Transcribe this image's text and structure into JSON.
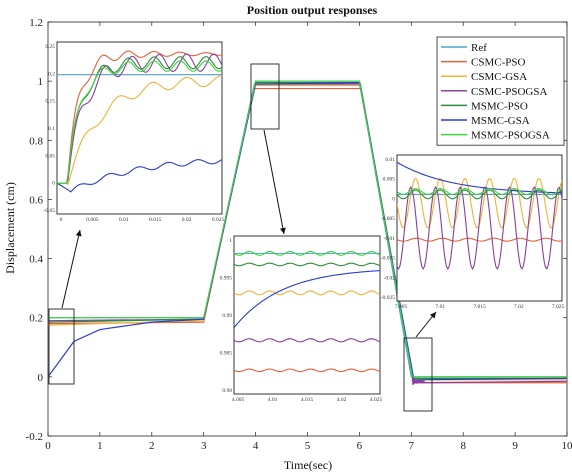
{
  "chart_data": {
    "type": "line",
    "title": "Position output responses",
    "xlabel": "Time(sec)",
    "ylabel": "Displacement (cm)",
    "xlim": [
      0,
      10
    ],
    "ylim": [
      -0.2,
      1.2
    ],
    "x_ticks": [
      "0",
      "1",
      "2",
      "3",
      "4",
      "5",
      "6",
      "7",
      "8",
      "9",
      "10"
    ],
    "y_ticks": [
      "-0.2",
      "0",
      "0.2",
      "0.4",
      "0.6",
      "0.8",
      "1",
      "1.2"
    ],
    "legend_position": "top-right",
    "series": [
      {
        "name": "Ref",
        "color": "#4ba3c8",
        "points": [
          [
            0,
            0.2
          ],
          [
            3,
            0.2
          ],
          [
            4,
            1.0
          ],
          [
            6,
            1.0
          ],
          [
            7,
            0.0
          ],
          [
            10,
            0.0
          ]
        ]
      },
      {
        "name": "CSMC-PSO",
        "color": "#e2603a",
        "points": [
          [
            0,
            0.18
          ],
          [
            3,
            0.185
          ],
          [
            3.97,
            0.975
          ],
          [
            6.03,
            0.975
          ],
          [
            7.05,
            -0.02
          ],
          [
            10,
            -0.02
          ]
        ]
      },
      {
        "name": "CSMC-GSA",
        "color": "#edb237",
        "points": [
          [
            0,
            0.175
          ],
          [
            3,
            0.19
          ],
          [
            3.98,
            0.985
          ],
          [
            6.02,
            0.985
          ],
          [
            7.05,
            -0.01
          ],
          [
            10,
            -0.01
          ]
        ]
      },
      {
        "name": "CSMC-PSOGSA",
        "color": "#8a3ea3",
        "points": [
          [
            0,
            0.19
          ],
          [
            3,
            0.195
          ],
          [
            3.98,
            0.99
          ],
          [
            6.02,
            0.99
          ],
          [
            7.05,
            -0.02
          ],
          [
            10,
            -0.015
          ]
        ]
      },
      {
        "name": "MSMC-PSO",
        "color": "#2f8b3c",
        "points": [
          [
            0,
            0.185
          ],
          [
            3,
            0.195
          ],
          [
            3.99,
            0.995
          ],
          [
            6.01,
            0.995
          ],
          [
            7.03,
            -0.005
          ],
          [
            10,
            -0.005
          ]
        ]
      },
      {
        "name": "MSMC-GSA",
        "color": "#2a3bd4",
        "points": [
          [
            0,
            0.0
          ],
          [
            0.5,
            0.12
          ],
          [
            1,
            0.16
          ],
          [
            2,
            0.185
          ],
          [
            3,
            0.195
          ],
          [
            4,
            0.99
          ],
          [
            6,
            0.995
          ],
          [
            7.05,
            -0.01
          ],
          [
            10,
            -0.005
          ]
        ]
      },
      {
        "name": "MSMC-PSOGSA",
        "color": "#3fd13f",
        "points": [
          [
            0,
            0.2
          ],
          [
            3,
            0.2
          ],
          [
            4,
            1.0
          ],
          [
            6,
            1.0
          ],
          [
            7.02,
            0.0
          ],
          [
            10,
            0.0
          ]
        ]
      }
    ],
    "insets": [
      {
        "x_ticks": [
          "0",
          "0.005",
          "0.01",
          "0.015",
          "0.02",
          "0.025"
        ],
        "y_ticks": [
          "-0.05",
          "0",
          "0.05",
          "0.1",
          "0.15",
          "0.2",
          "0.25"
        ]
      },
      {
        "x_ticks": [
          "4.005",
          "4.01",
          "4.015",
          "4.02",
          "4.025"
        ],
        "y_ticks": [
          "0.98",
          "0.985",
          "0.99",
          "0.995",
          "1"
        ]
      },
      {
        "x_ticks": [
          "7.005",
          "7.01",
          "7.015",
          "7.02",
          "7.025"
        ],
        "y_ticks": [
          "-0.025",
          "-0.02",
          "-0.015",
          "-0.01",
          "-0.005",
          "0",
          "0.005",
          "0.01"
        ]
      }
    ]
  }
}
